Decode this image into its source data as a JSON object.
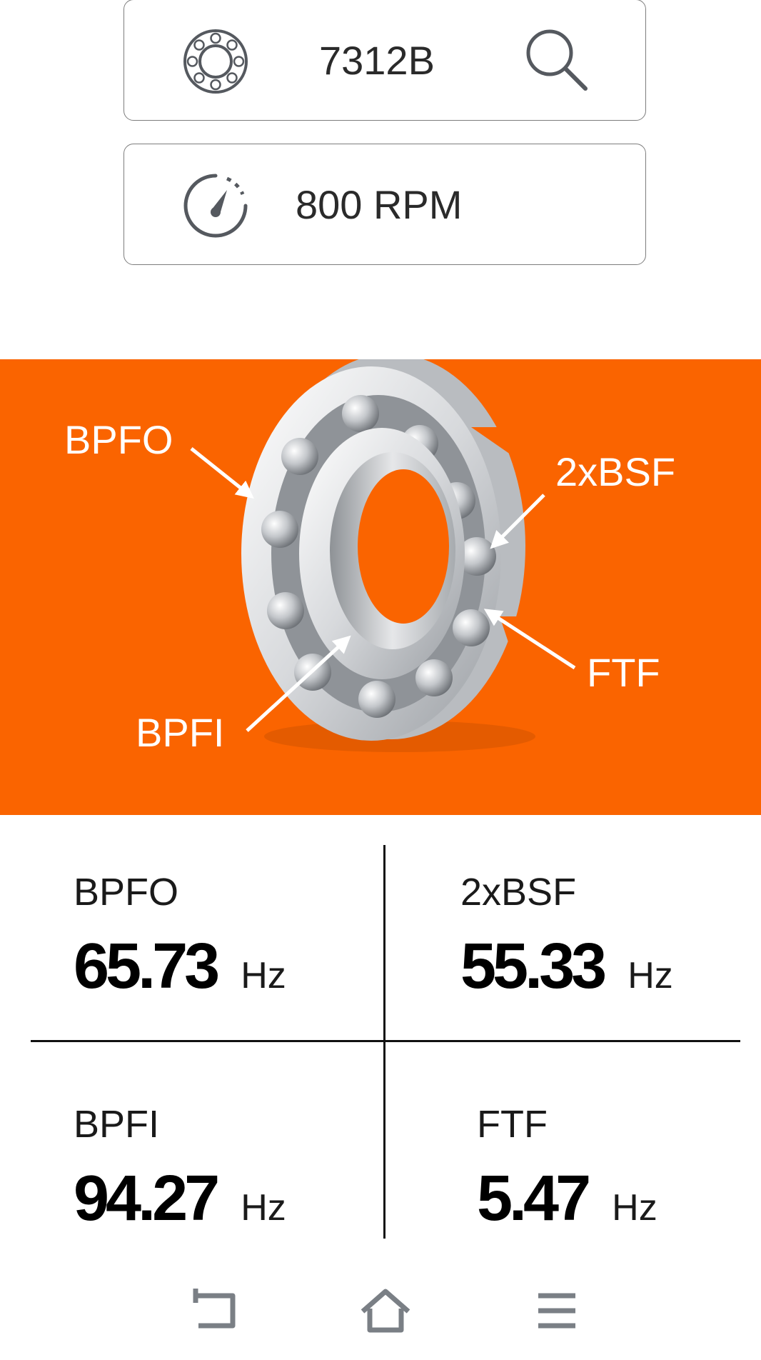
{
  "bearing_input": {
    "value": "7312B",
    "icon": "bearing-icon",
    "search_icon": "search-icon"
  },
  "speed_input": {
    "value": "800 RPM",
    "icon": "speedometer-icon"
  },
  "diagram": {
    "background_color": "#fa6400",
    "labels": {
      "bpfo": "BPFO",
      "bsf": "2xBSF",
      "ftf": "FTF",
      "bpfi": "BPFI"
    }
  },
  "results": {
    "bpfo": {
      "name": "BPFO",
      "value": "65.73",
      "unit": "Hz"
    },
    "bsf": {
      "name": "2xBSF",
      "value": "55.33",
      "unit": "Hz"
    },
    "bpfi": {
      "name": "BPFI",
      "value": "94.27",
      "unit": "Hz"
    },
    "ftf": {
      "name": "FTF",
      "value": "5.47",
      "unit": "Hz"
    }
  },
  "nav": {
    "back_icon": "back-icon",
    "home_icon": "home-icon",
    "menu_icon": "menu-icon"
  }
}
